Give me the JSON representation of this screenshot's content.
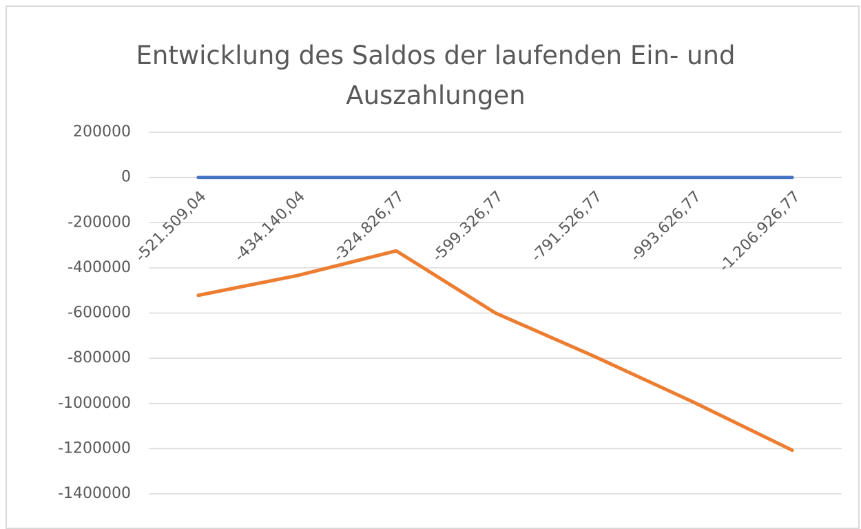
{
  "chart_data": {
    "type": "line",
    "title": "Entwicklung des Saldos der laufenden Ein- und Auszahlungen",
    "categories": [
      "-521.509,04",
      "-434.140,04",
      "-324.826,77",
      "-599.326,77",
      "-791.526,77",
      "-993.626,77",
      "-1.206.926,77"
    ],
    "series": [
      {
        "color": "#4472c4",
        "values": [
          0,
          0,
          0,
          0,
          0,
          0,
          0
        ]
      },
      {
        "color": "#ed7d31",
        "values": [
          -521509.04,
          -434140.04,
          -324826.77,
          -599326.77,
          -791526.77,
          -993626.77,
          -1206926.77
        ]
      }
    ],
    "ylim": [
      -1400000,
      200000
    ],
    "yticks": [
      200000,
      0,
      -200000,
      -400000,
      -600000,
      -800000,
      -1000000,
      -1200000,
      -1400000
    ],
    "grid": true
  }
}
